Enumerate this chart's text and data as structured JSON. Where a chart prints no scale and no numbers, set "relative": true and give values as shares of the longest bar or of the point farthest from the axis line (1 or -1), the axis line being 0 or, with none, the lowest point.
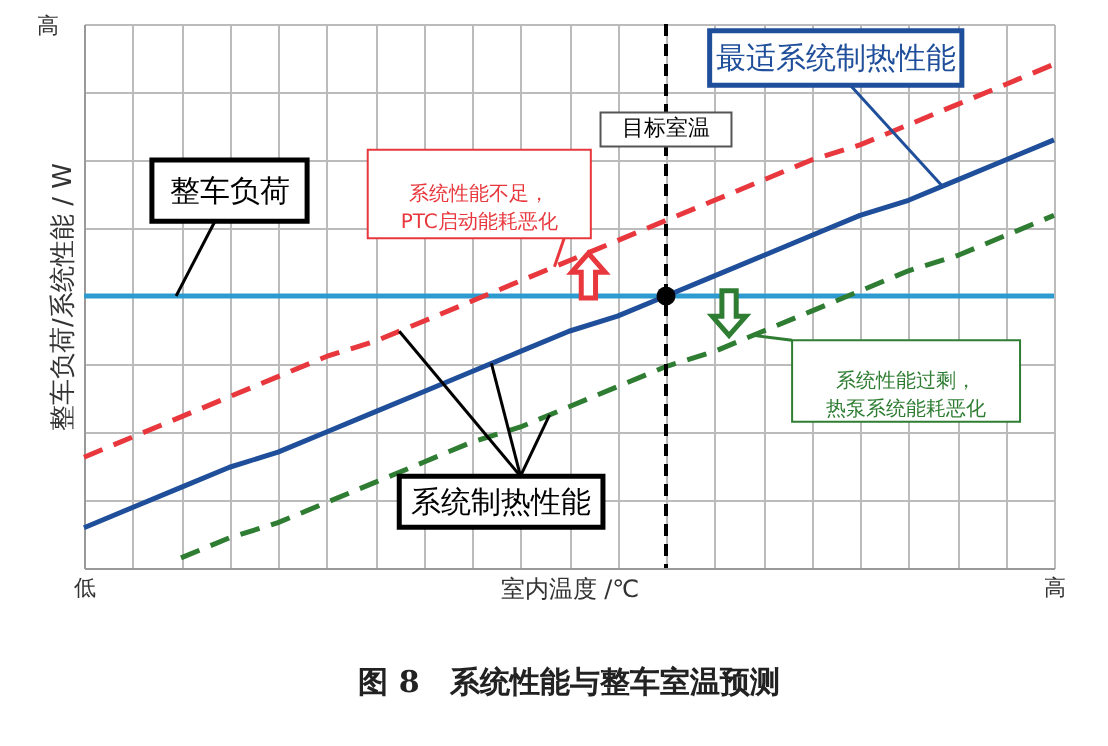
{
  "chart_data": {
    "type": "line",
    "title": "图 8　系统性能与整车室温预测",
    "xlabel": "室内温度 /℃",
    "ylabel": "整车负荷/系统性能 / W",
    "relative": true,
    "categories": [
      "低",
      null,
      null,
      null,
      null,
      null,
      null,
      null,
      null,
      null,
      null,
      null,
      null,
      null,
      null,
      null,
      null,
      null,
      null,
      null,
      "高"
    ],
    "grid": true,
    "series": [
      {
        "color": "#2e9bd0",
        "line_style": "solid",
        "values": [
          0.54,
          0.54,
          0.54,
          0.54,
          0.54,
          0.54,
          0.54,
          0.54,
          0.54,
          0.54,
          0.54,
          0.54,
          0.54,
          0.54,
          0.54,
          0.54,
          0.54,
          0.54,
          0.54,
          0.54,
          0.54
        ]
      },
      {
        "color": "#e8383d",
        "line_style": "dashed",
        "values": [
          0.22,
          0.26,
          0.3,
          0.34,
          0.38,
          0.42,
          0.45,
          0.49,
          0.53,
          0.57,
          0.61,
          0.65,
          0.69,
          0.73,
          0.77,
          0.81,
          0.84,
          0.88,
          0.92,
          0.96,
          1
        ]
      },
      {
        "color": "#1f4e9a",
        "line_style": "solid",
        "values": [
          0.08,
          0.12,
          0.16,
          0.2,
          0.23,
          0.27,
          0.31,
          0.35,
          0.39,
          0.43,
          0.47,
          0.5,
          0.54,
          0.58,
          0.62,
          0.66,
          0.7,
          0.73,
          0.77,
          0.81,
          0.85
        ]
      },
      {
        "color": "#2e7d32",
        "line_style": "dashed",
        "values": [
          null,
          null,
          0.02,
          0.06,
          0.09,
          0.13,
          0.17,
          0.21,
          0.25,
          0.28,
          0.32,
          0.36,
          0.4,
          0.43,
          0.47,
          0.51,
          0.55,
          0.59,
          0.62,
          0.66,
          0.7
        ]
      },
      {
        "type": "scatter",
        "color": "#000000",
        "marker": "circle",
        "values": [
          null,
          null,
          null,
          null,
          null,
          null,
          null,
          null,
          null,
          null,
          null,
          null,
          0.54,
          null,
          null,
          null,
          null,
          null,
          null,
          null,
          null
        ]
      }
    ],
    "annotations": [
      "整车负荷",
      "系统性能不足，PTC启动能耗恶化",
      "系统制热性能",
      "最适系统制热性能",
      "系统性能过剩，热泵系统能耗恶化",
      "目标室温",
      "高"
    ]
  }
}
